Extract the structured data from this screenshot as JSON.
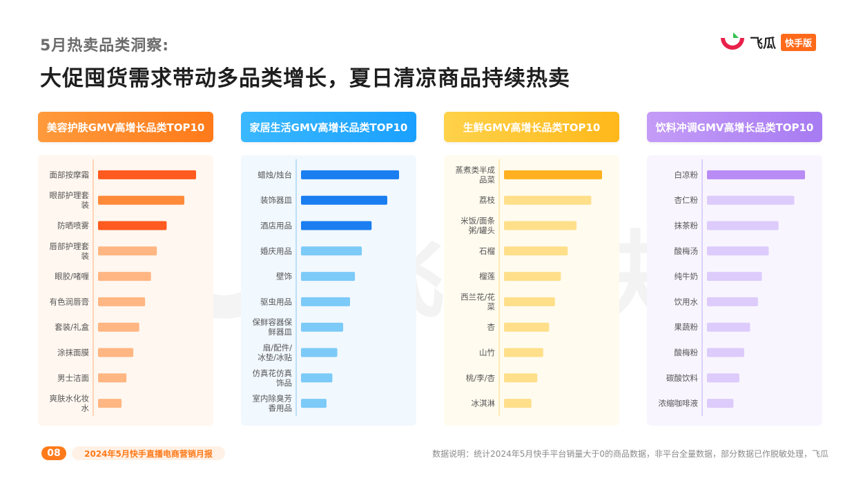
{
  "header": {
    "subtitle": "5月热卖品类洞察:",
    "headline": "大促囤货需求带动多品类增长，夏日清凉商品持续热卖"
  },
  "logo": {
    "name": "飞瓜",
    "badge": "快手版"
  },
  "watermark": {
    "text": "飞瓜 快手版"
  },
  "footer": {
    "page": "08",
    "report": "2024年5月快手直播电商营销月报",
    "note": "数据说明：统计2024年5月快手平台销量大于0的商品数据，非平台全量数据，部分数据已作脱敏处理，飞瓜"
  },
  "colors": {
    "panel1_header": [
      "#ff9a3c",
      "#ff7a1a"
    ],
    "panel2_header": [
      "#3ab8ff",
      "#1aa0ff"
    ],
    "panel3_header": [
      "#ffd24a",
      "#ffb81a"
    ],
    "panel4_header": [
      "#c49cf7",
      "#a77bf2"
    ]
  },
  "chart_data": [
    {
      "type": "bar",
      "orientation": "horizontal",
      "title": "美容护肤GMV高增长品类TOP10",
      "categories": [
        "面部按摩霜",
        "眼部护理套装",
        "防晒喷雾",
        "唇部护理套装",
        "眼胶/啫喱",
        "有色润唇膏",
        "套装/礼盒",
        "涂抹面膜",
        "男士洁面",
        "爽肤水化妆水"
      ],
      "values": [
        100,
        88,
        70,
        60,
        54,
        48,
        42,
        36,
        29,
        24
      ],
      "colors": [
        "#ff5a1f",
        "#ff8a3a",
        "#ff5a1f",
        "#ffb682",
        "#ffb682",
        "#ffb682",
        "#ffb682",
        "#ffb682",
        "#ffb682",
        "#ffb682"
      ],
      "panel_bg": "#fff7f0",
      "axis_color": "#ffc9a3"
    },
    {
      "type": "bar",
      "orientation": "horizontal",
      "title": "家居生活GMV高增长品类TOP10",
      "categories": [
        "蜡烛/烛台",
        "装饰器皿",
        "酒店用品",
        "婚庆用品",
        "壁饰",
        "驱虫用品",
        "保鲜容器保鲜器皿",
        "扇/配件/冰垫/冰贴",
        "仿真花仿真饰品",
        "室内除臭芳香用品"
      ],
      "values": [
        100,
        88,
        72,
        62,
        55,
        50,
        43,
        37,
        32,
        26
      ],
      "colors": [
        "#1a7ef0",
        "#1a7ef0",
        "#1a7ef0",
        "#7ccaf7",
        "#7ccaf7",
        "#7ccaf7",
        "#7ccaf7",
        "#7ccaf7",
        "#7ccaf7",
        "#7ccaf7"
      ],
      "panel_bg": "#f1f8fe",
      "axis_color": "#a8d8f8"
    },
    {
      "type": "bar",
      "orientation": "horizontal",
      "title": "生鲜GMV高增长品类TOP10",
      "categories": [
        "蒸煮类半成品菜",
        "荔枝",
        "米饭/面条粥/罐头",
        "石榴",
        "榴莲",
        "西兰花/花菜",
        "杏",
        "山竹",
        "桃/李/杏",
        "冰淇淋"
      ],
      "values": [
        100,
        89,
        74,
        65,
        58,
        52,
        46,
        40,
        34,
        28
      ],
      "colors": [
        "#ffb020",
        "#ffdf8a",
        "#ffdf8a",
        "#ffdf8a",
        "#ffdf8a",
        "#ffdf8a",
        "#ffdf8a",
        "#ffdf8a",
        "#ffdf8a",
        "#ffdf8a"
      ],
      "panel_bg": "#fffbef",
      "axis_color": "#ffe3a0"
    },
    {
      "type": "bar",
      "orientation": "horizontal",
      "title": "饮料冲调GMV高增长品类TOP10",
      "categories": [
        "白凉粉",
        "杏仁粉",
        "抹茶粉",
        "酸梅汤",
        "纯牛奶",
        "饮用水",
        "果蔬粉",
        "酸梅粉",
        "碳酸饮料",
        "浓缩咖啡液"
      ],
      "values": [
        100,
        89,
        73,
        63,
        56,
        52,
        44,
        38,
        33,
        27
      ],
      "colors": [
        "#b98cf5",
        "#dccbfb",
        "#dccbfb",
        "#dccbfb",
        "#dccbfb",
        "#dccbfb",
        "#dccbfb",
        "#dccbfb",
        "#dccbfb",
        "#dccbfb"
      ],
      "panel_bg": "#f8f5fe",
      "axis_color": "#d6c6f7"
    }
  ]
}
